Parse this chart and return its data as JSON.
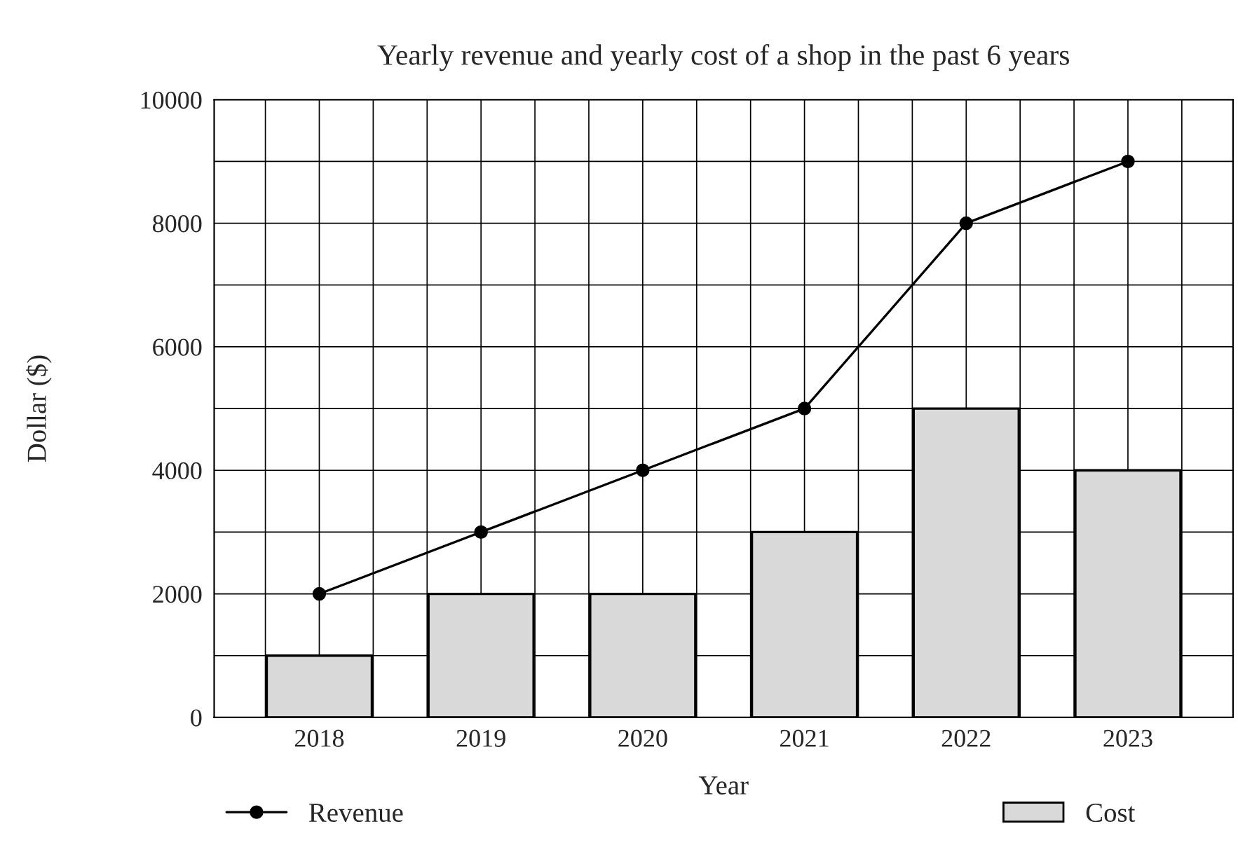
{
  "chart_data": {
    "type": "bar",
    "title": "Yearly revenue and yearly cost of a shop in the past 6 years",
    "xlabel": "Year",
    "ylabel": "Dollar ($)",
    "categories": [
      "2018",
      "2019",
      "2020",
      "2021",
      "2022",
      "2023"
    ],
    "series": [
      {
        "name": "Cost",
        "color": "#d9d9d9",
        "values": [
          1000,
          2000,
          2000,
          3000,
          5000,
          4000
        ]
      },
      {
        "name": "Revenue",
        "type": "line",
        "color": "#000000",
        "marker": "circle",
        "values": [
          2000,
          3000,
          4000,
          5000,
          8000,
          9000
        ]
      }
    ],
    "ylim": [
      0,
      10000
    ],
    "yticks": [
      0,
      {
        "value": 1000,
        "label": null
      },
      2000,
      {
        "value": 3000,
        "label": null
      },
      4000,
      {
        "value": 5000,
        "label": null
      },
      6000,
      {
        "value": 7000,
        "label": null
      },
      8000,
      {
        "value": 9000,
        "label": null
      },
      10000
    ],
    "grid": true,
    "legend": "bottom"
  }
}
